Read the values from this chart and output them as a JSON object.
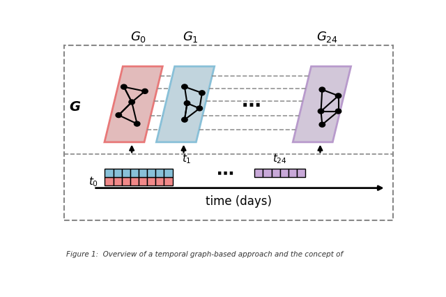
{
  "bg_color": "#ffffff",
  "outer_box_color": "#888888",
  "graph_bg_color": "#e0e0e0",
  "G0_frame_color": "#e87878",
  "G1_frame_color": "#88c0d8",
  "G24_frame_color": "#b89acc",
  "bar_red_color": "#f08888",
  "bar_blue_color": "#88c0d8",
  "bar_purple_color": "#c8a8d8",
  "time_label": "time (days)"
}
